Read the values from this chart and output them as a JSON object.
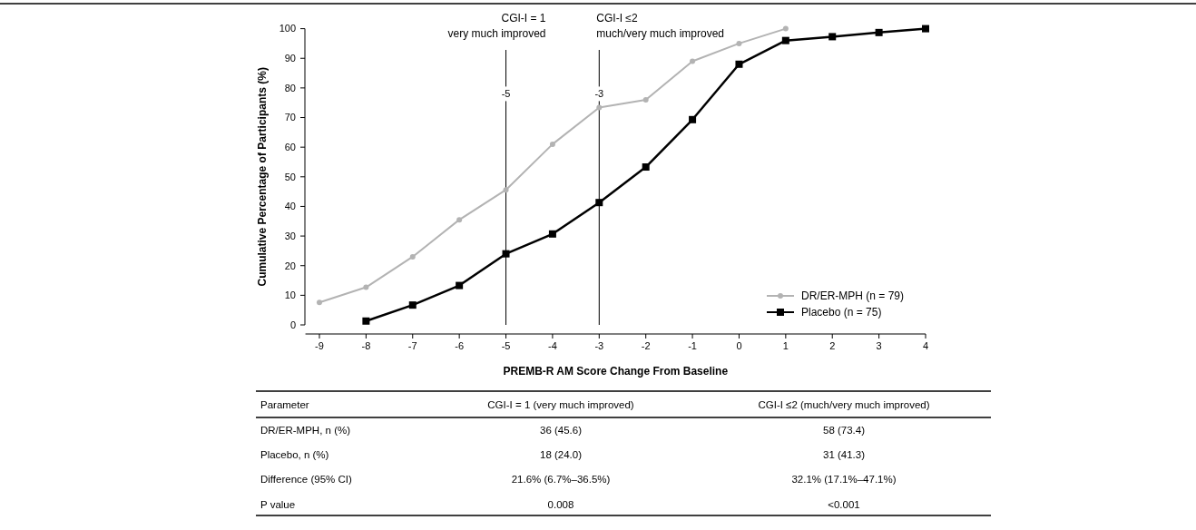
{
  "chart_data": {
    "type": "line",
    "xlabel": "PREMB-R AM Score Change From Baseline",
    "ylabel": "Cumulative Percentage of Participants (%)",
    "xlim": [
      -9.3,
      4
    ],
    "xticks": [
      -9,
      -8,
      -7,
      -6,
      -5,
      -4,
      -3,
      -2,
      -1,
      0,
      1,
      2,
      3,
      4
    ],
    "ylim": [
      0,
      100
    ],
    "yticks": [
      0,
      10,
      20,
      30,
      40,
      50,
      60,
      70,
      80,
      90,
      100
    ],
    "legend": "bottom right",
    "series": [
      {
        "name": "DR/ER-MPH (n = 79)",
        "color": "#b3b3b3",
        "marker": "circle",
        "x": [
          -9,
          -8,
          -7,
          -6,
          -5,
          -4,
          -3,
          -2,
          -1,
          0,
          1
        ],
        "values": [
          7.6,
          12.7,
          23,
          35.5,
          45.6,
          61,
          73.4,
          76,
          89,
          95,
          100
        ]
      },
      {
        "name": "Placebo (n = 75)",
        "color": "#000000",
        "marker": "square",
        "x": [
          -8,
          -7,
          -6,
          -5,
          -4,
          -3,
          -2,
          -1,
          0,
          1,
          2,
          3,
          4
        ],
        "values": [
          1.3,
          6.7,
          13.3,
          24.0,
          30.7,
          41.3,
          53.3,
          69.3,
          88,
          96,
          97.3,
          98.7,
          100
        ]
      }
    ],
    "ref_lines": [
      {
        "axis": "x",
        "value": -5,
        "label": "-5",
        "color": "#000000"
      },
      {
        "axis": "x",
        "value": -3,
        "label": "-3",
        "color": "#000000"
      }
    ],
    "annotations": [
      "CGI-I = 1\nvery much improved",
      "CGI-I ≤2\nmuch/very much improved",
      "Parameter",
      "CGI-I = 1 (very much improved)",
      "CGI-I ≤2 (much/very much improved)",
      "DR/ER-MPH, n (%)",
      "36 (45.6)",
      "58 (73.4)",
      "Placebo, n (%)",
      "18 (24.0)",
      "31 (41.3)",
      "Difference (95% CI)",
      "21.6% (6.7%–36.5%)",
      "32.1% (17.1%–47.1%)",
      "P value",
      "0.008",
      "<0.001"
    ]
  }
}
